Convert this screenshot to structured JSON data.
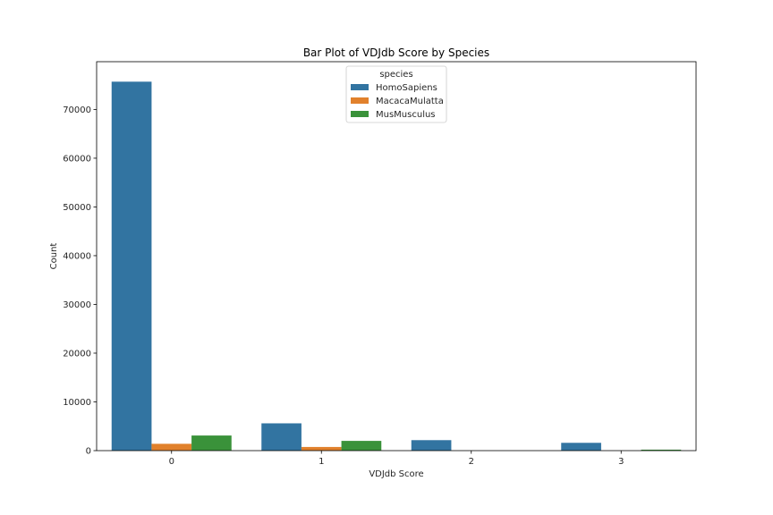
{
  "chart_data": {
    "type": "bar",
    "title": "Bar Plot of VDJdb Score by Species",
    "xlabel": "VDJdb Score",
    "ylabel": "Count",
    "categories": [
      "0",
      "1",
      "2",
      "3"
    ],
    "series": [
      {
        "name": "HomoSapiens",
        "color": "#3274a1",
        "values": [
          75700,
          5600,
          2150,
          1600
        ]
      },
      {
        "name": "MacacaMulatta",
        "color": "#e1812c",
        "values": [
          1400,
          750,
          0,
          0
        ]
      },
      {
        "name": "MusMusculus",
        "color": "#3a923a",
        "values": [
          3100,
          2000,
          0,
          200
        ]
      }
    ],
    "ylim": [
      0,
      79800
    ],
    "yticks": [
      0,
      10000,
      20000,
      30000,
      40000,
      50000,
      60000,
      70000
    ],
    "legend": {
      "title": "species",
      "placement": "top-center"
    },
    "grid": false
  }
}
